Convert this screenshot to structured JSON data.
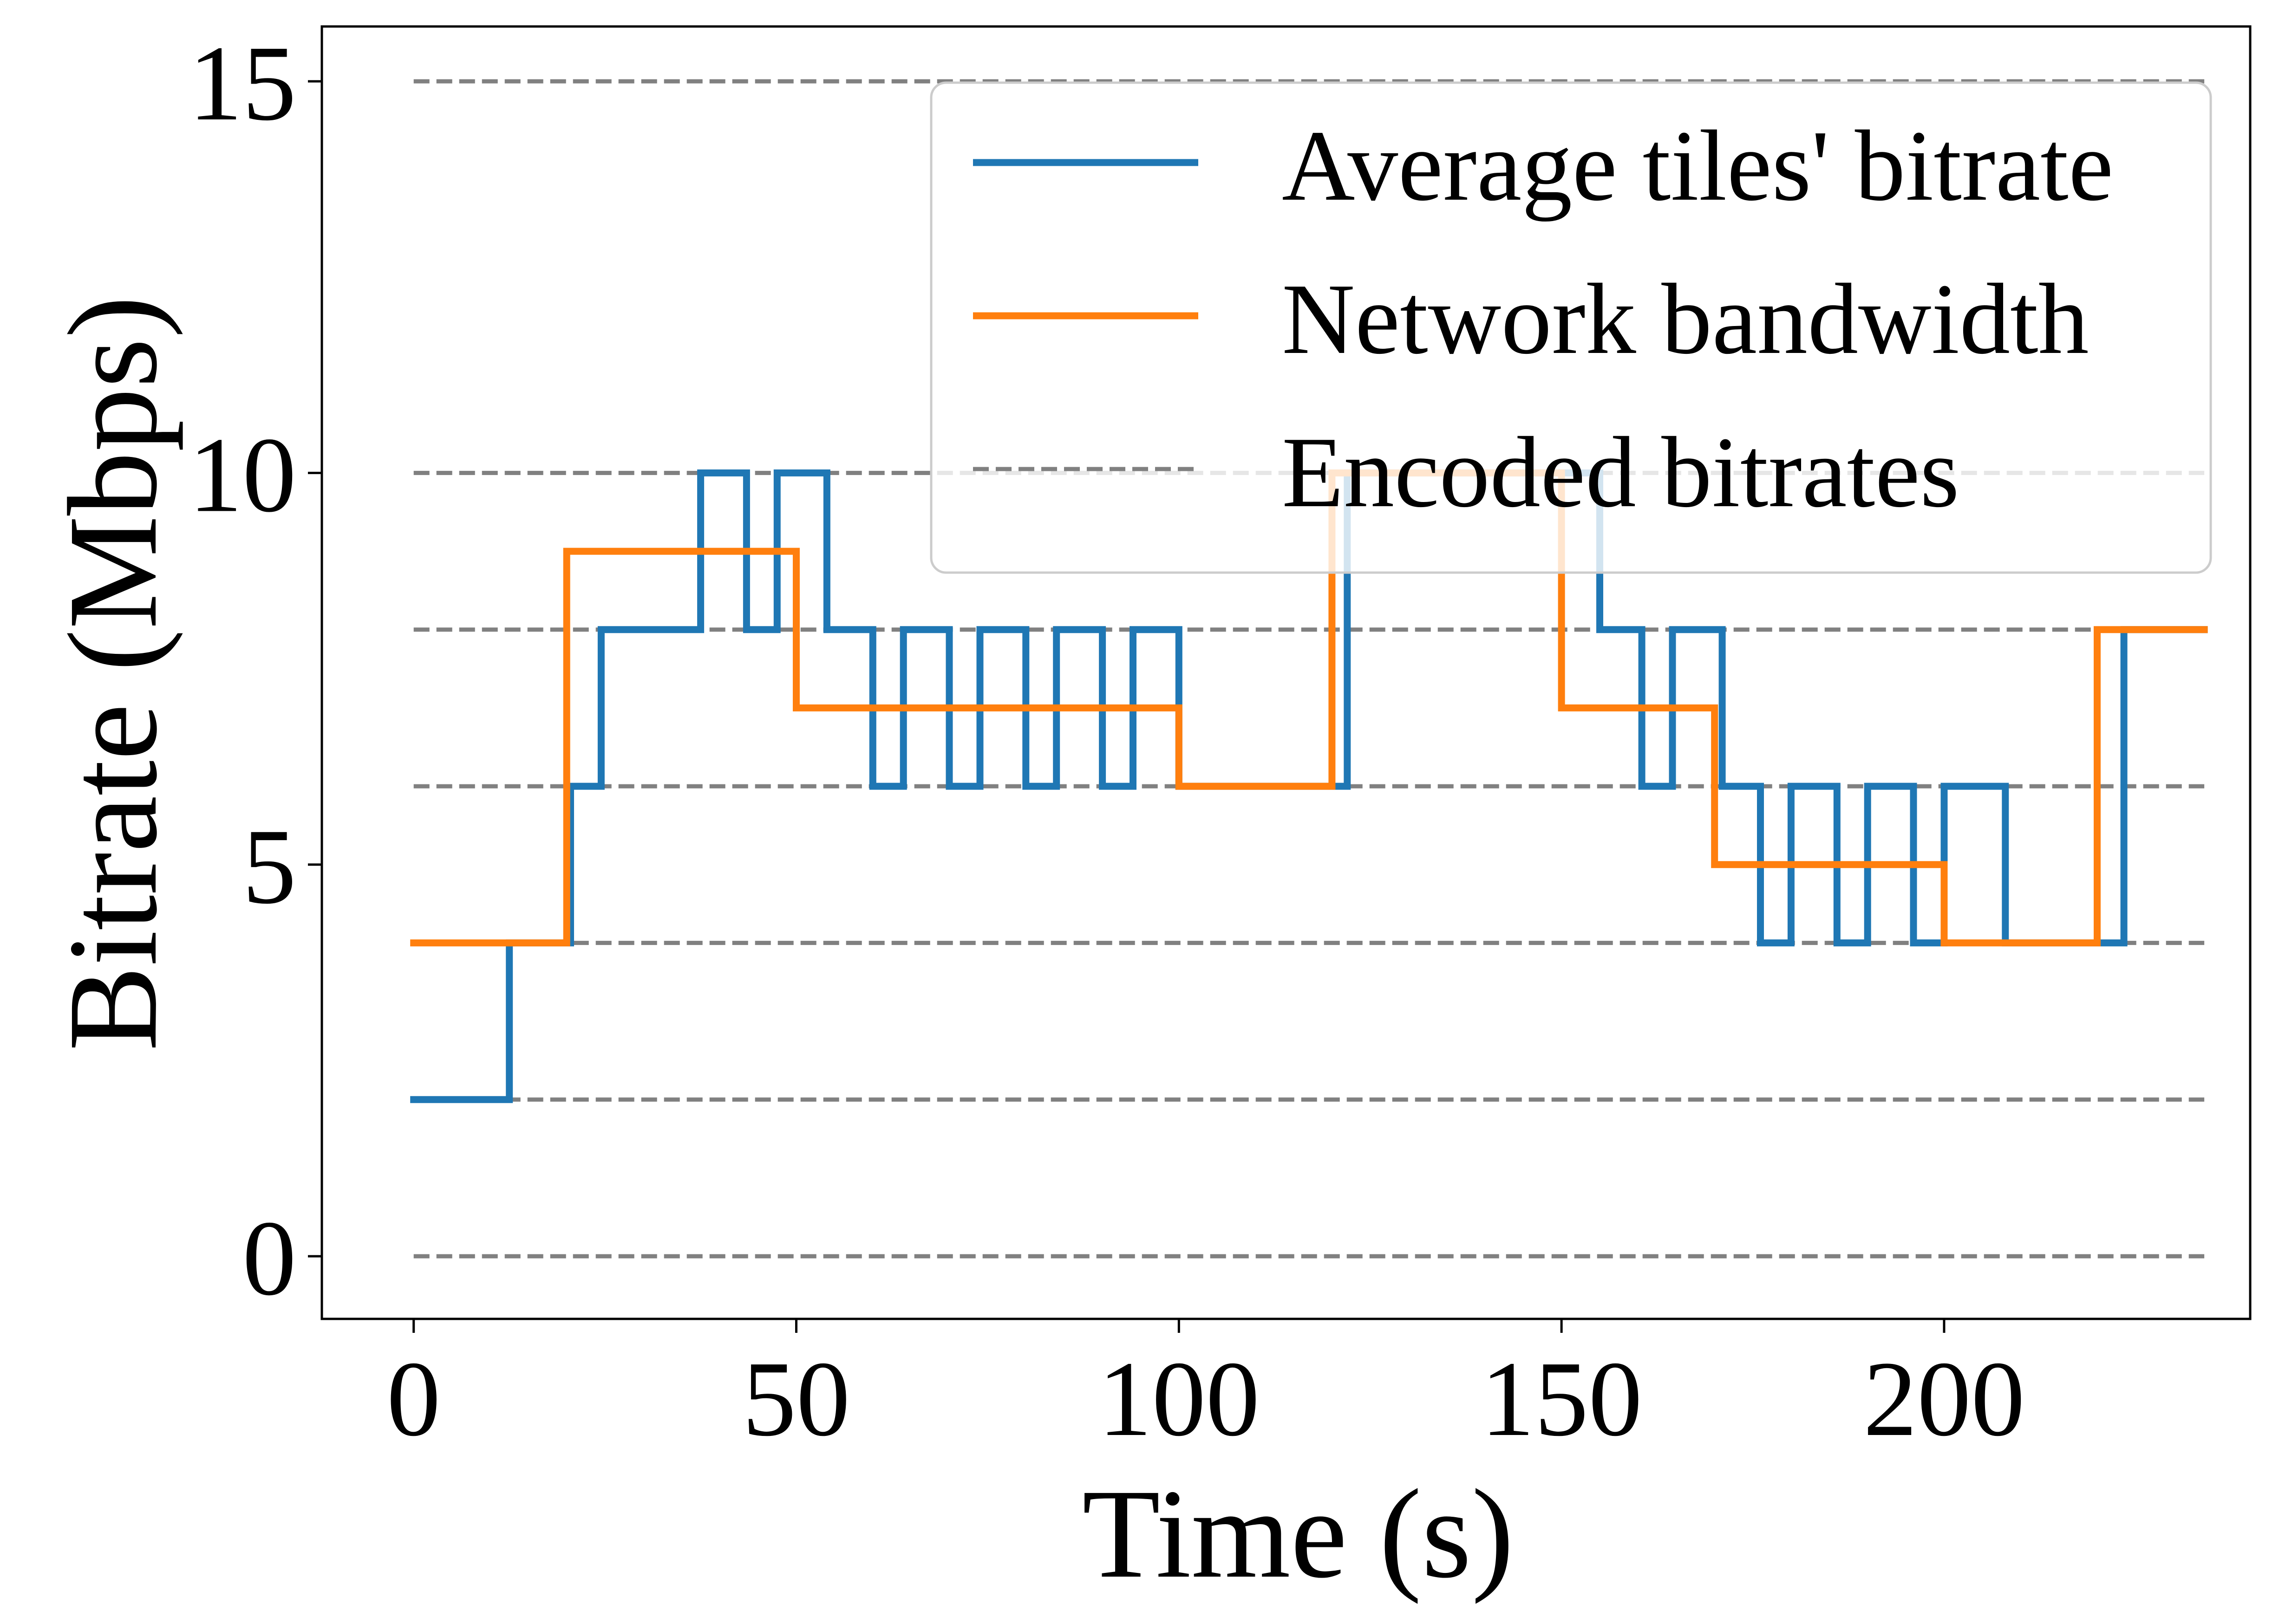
{
  "chart_data": {
    "type": "line",
    "title": "",
    "xlabel": "Time (s)",
    "ylabel": "Bitrate (Mbps)",
    "xlim": [
      -12,
      240
    ],
    "ylim": [
      -0.8,
      15.7
    ],
    "xticks": [
      0,
      50,
      100,
      150,
      200
    ],
    "yticks": [
      0,
      5,
      10,
      15
    ],
    "grid": false,
    "legend_position": "top-right",
    "reference_lines": {
      "name": "Encoded bitrates",
      "style": "dashed",
      "color": "#808080",
      "x_range": [
        0,
        234
      ],
      "y_values": [
        0,
        2,
        4,
        6,
        8,
        10,
        15
      ]
    },
    "series": [
      {
        "name": "Average tiles' bitrate",
        "color": "#1f77b4",
        "style": "step",
        "x": [
          0,
          12.5,
          12.5,
          20.5,
          20.5,
          24.5,
          24.5,
          37.5,
          37.5,
          43.5,
          43.5,
          47.5,
          47.5,
          54,
          54,
          60,
          60,
          64,
          64,
          70,
          70,
          74,
          74,
          80,
          80,
          84,
          84,
          90,
          90,
          94,
          94,
          100,
          100,
          122,
          122,
          123.5,
          123.5,
          135,
          135,
          155,
          155,
          160.5,
          160.5,
          164.5,
          164.5,
          171,
          171,
          176,
          176,
          180,
          180,
          186,
          186,
          190,
          190,
          196,
          196,
          200,
          200,
          208,
          208,
          223.5,
          223.5,
          234
        ],
        "y": [
          2,
          2,
          4,
          4,
          6,
          6,
          8,
          8,
          10,
          10,
          8,
          8,
          10,
          10,
          8,
          8,
          6,
          6,
          8,
          8,
          6,
          6,
          8,
          8,
          6,
          6,
          8,
          8,
          6,
          6,
          8,
          8,
          6,
          6,
          10,
          10,
          10,
          10,
          10,
          10,
          8,
          8,
          6,
          6,
          8,
          8,
          6,
          6,
          4,
          4,
          6,
          6,
          4,
          4,
          6,
          6,
          4,
          4,
          6,
          6,
          4,
          4,
          8,
          8
        ]
      },
      {
        "name": "Network bandwidth",
        "color": "#ff7f0e",
        "style": "step",
        "x": [
          0,
          20,
          20,
          50,
          50,
          100,
          100,
          120,
          120,
          135,
          135,
          150,
          150,
          170,
          170,
          200,
          200,
          220,
          220,
          234
        ],
        "y": [
          4,
          4,
          9,
          9,
          7,
          7,
          6,
          6,
          10,
          10,
          10,
          10,
          7,
          7,
          5,
          5,
          4,
          4,
          8,
          8
        ]
      }
    ]
  }
}
